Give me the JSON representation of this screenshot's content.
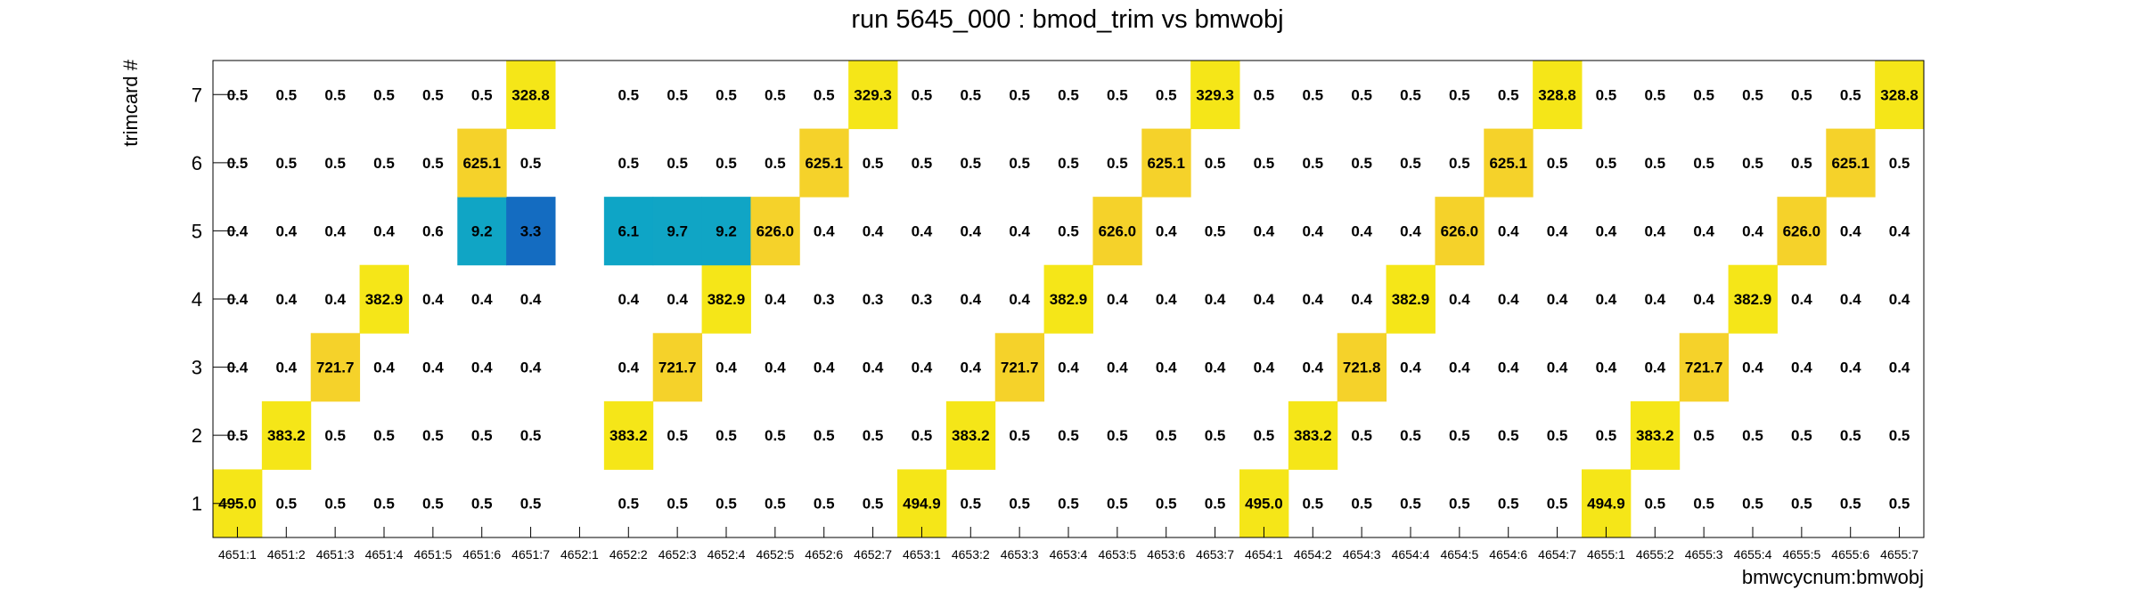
{
  "chart_data": {
    "type": "heatmap",
    "title": "run 5645_000 : bmod_trim vs bmwobj",
    "xlabel": "bmwcycnum:bmwobj",
    "ylabel": "trimcard #",
    "x_categories": [
      "4651:1",
      "4651:2",
      "4651:3",
      "4651:4",
      "4651:5",
      "4651:6",
      "4651:7",
      "4652:1",
      "4652:2",
      "4652:3",
      "4652:4",
      "4652:5",
      "4652:6",
      "4652:7",
      "4653:1",
      "4653:2",
      "4653:3",
      "4653:4",
      "4653:5",
      "4653:6",
      "4653:7",
      "4654:1",
      "4654:2",
      "4654:3",
      "4654:4",
      "4654:5",
      "4654:6",
      "4654:7",
      "4655:1",
      "4655:2",
      "4655:3",
      "4655:4",
      "4655:5",
      "4655:6",
      "4655:7"
    ],
    "y_categories": [
      1,
      2,
      3,
      4,
      5,
      6,
      7
    ],
    "grid": false,
    "colormap": {
      "low": "#1565c0",
      "mid": "#0ea5c6",
      "high": "#f5e618",
      "top": "#f5d22a"
    },
    "values": [
      [
        495.0,
        0.5,
        0.5,
        0.5,
        0.5,
        0.5,
        0.5,
        null,
        0.5,
        0.5,
        0.5,
        0.5,
        0.5,
        0.5,
        494.9,
        0.5,
        0.5,
        0.5,
        0.5,
        0.5,
        0.5,
        495.0,
        0.5,
        0.5,
        0.5,
        0.5,
        0.5,
        0.5,
        494.9,
        0.5,
        0.5,
        0.5,
        0.5,
        0.5,
        0.5
      ],
      [
        0.5,
        383.2,
        0.5,
        0.5,
        0.5,
        0.5,
        0.5,
        null,
        383.2,
        0.5,
        0.5,
        0.5,
        0.5,
        0.5,
        0.5,
        383.2,
        0.5,
        0.5,
        0.5,
        0.5,
        0.5,
        0.5,
        383.2,
        0.5,
        0.5,
        0.5,
        0.5,
        0.5,
        0.5,
        383.2,
        0.5,
        0.5,
        0.5,
        0.5,
        0.5
      ],
      [
        0.4,
        0.4,
        721.7,
        0.4,
        0.4,
        0.4,
        0.4,
        null,
        0.4,
        721.7,
        0.4,
        0.4,
        0.4,
        0.4,
        0.4,
        0.4,
        721.7,
        0.4,
        0.4,
        0.4,
        0.4,
        0.4,
        0.4,
        721.8,
        0.4,
        0.4,
        0.4,
        0.4,
        0.4,
        0.4,
        721.7,
        0.4,
        0.4,
        0.4,
        0.4
      ],
      [
        0.4,
        0.4,
        0.4,
        382.9,
        0.4,
        0.4,
        0.4,
        null,
        0.4,
        0.4,
        382.9,
        0.4,
        0.3,
        0.3,
        0.3,
        0.4,
        0.4,
        382.9,
        0.4,
        0.4,
        0.4,
        0.4,
        0.4,
        0.4,
        382.9,
        0.4,
        0.4,
        0.4,
        0.4,
        0.4,
        0.4,
        382.9,
        0.4,
        0.4,
        0.4
      ],
      [
        0.4,
        0.4,
        0.4,
        0.4,
        0.6,
        9.2,
        3.3,
        null,
        6.1,
        9.7,
        9.2,
        626.0,
        0.4,
        0.4,
        0.4,
        0.4,
        0.4,
        0.5,
        626.0,
        0.4,
        0.5,
        0.4,
        0.4,
        0.4,
        0.4,
        626.0,
        0.4,
        0.4,
        0.4,
        0.4,
        0.4,
        0.4,
        626.0,
        0.4,
        0.4
      ],
      [
        0.5,
        0.5,
        0.5,
        0.5,
        0.5,
        625.1,
        0.5,
        null,
        0.5,
        0.5,
        0.5,
        0.5,
        625.1,
        0.5,
        0.5,
        0.5,
        0.5,
        0.5,
        0.5,
        625.1,
        0.5,
        0.5,
        0.5,
        0.5,
        0.5,
        0.5,
        625.1,
        0.5,
        0.5,
        0.5,
        0.5,
        0.5,
        0.5,
        625.1,
        0.5
      ],
      [
        0.5,
        0.5,
        0.5,
        0.5,
        0.5,
        0.5,
        328.8,
        null,
        0.5,
        0.5,
        0.5,
        0.5,
        0.5,
        329.3,
        0.5,
        0.5,
        0.5,
        0.5,
        0.5,
        0.5,
        329.3,
        0.5,
        0.5,
        0.5,
        0.5,
        0.5,
        0.5,
        328.8,
        0.5,
        0.5,
        0.5,
        0.5,
        0.5,
        0.5,
        328.8
      ]
    ]
  }
}
